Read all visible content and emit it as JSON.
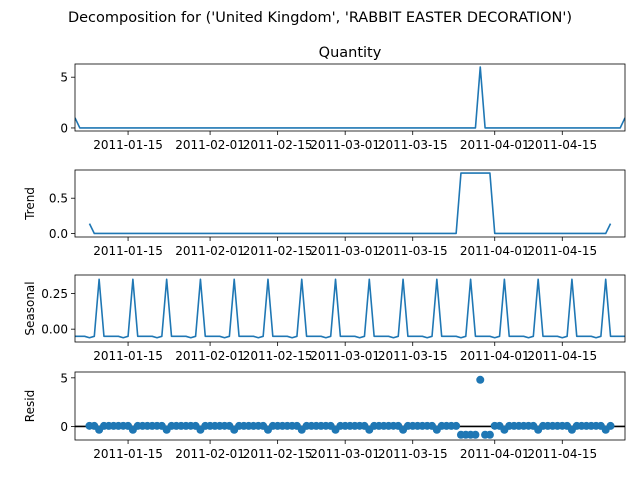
{
  "figure": {
    "suptitle": "Decomposition for ('United Kingdom', 'RABBIT EASTER DECORATION')"
  },
  "chart_data": [
    {
      "type": "line",
      "title": "Quantity",
      "ylabel": "",
      "xlim": [
        "2011-01-04",
        "2011-04-28"
      ],
      "ylim": [
        -0.3,
        6.3
      ],
      "yticks": [
        0,
        5
      ],
      "ytick_labels": [
        "0",
        "5"
      ],
      "xticks": [
        "2011-01-15",
        "2011-02-01",
        "2011-02-15",
        "2011-03-01",
        "2011-03-15",
        "2011-04-01",
        "2011-04-15"
      ],
      "xtick_labels": [
        "2011-01-15",
        "2011-02-01",
        "2011-02-15",
        "2011-03-01",
        "2011-03-15",
        "2011-04-01",
        "2011-04-15"
      ],
      "color": "#1f77b4",
      "points": [
        {
          "x": "2011-01-04",
          "y": 1
        },
        {
          "x": "2011-01-05",
          "y": 0
        },
        {
          "x": "2011-03-28",
          "y": 0
        },
        {
          "x": "2011-03-29",
          "y": 6
        },
        {
          "x": "2011-03-30",
          "y": 0
        },
        {
          "x": "2011-04-27",
          "y": 0
        },
        {
          "x": "2011-04-28",
          "y": 1
        }
      ]
    },
    {
      "type": "line",
      "title": "",
      "ylabel": "Trend",
      "xlim": [
        "2011-01-04",
        "2011-04-28"
      ],
      "ylim": [
        -0.05,
        0.9
      ],
      "yticks": [
        0,
        0.5
      ],
      "ytick_labels": [
        "0.0",
        "0.5"
      ],
      "xticks": [
        "2011-01-15",
        "2011-02-01",
        "2011-02-15",
        "2011-03-01",
        "2011-03-15",
        "2011-04-01",
        "2011-04-15"
      ],
      "xtick_labels": [
        "2011-01-15",
        "2011-02-01",
        "2011-02-15",
        "2011-03-01",
        "2011-03-15",
        "2011-04-01",
        "2011-04-15"
      ],
      "color": "#1f77b4",
      "points": [
        {
          "x": "2011-01-07",
          "y": 0.14
        },
        {
          "x": "2011-01-08",
          "y": 0
        },
        {
          "x": "2011-03-24",
          "y": 0
        },
        {
          "x": "2011-03-25",
          "y": 0.857
        },
        {
          "x": "2011-03-31",
          "y": 0.857
        },
        {
          "x": "2011-04-01",
          "y": 0
        },
        {
          "x": "2011-04-24",
          "y": 0
        },
        {
          "x": "2011-04-25",
          "y": 0.14
        }
      ]
    },
    {
      "type": "line",
      "title": "",
      "ylabel": "Seasonal",
      "xlim": [
        "2011-01-04",
        "2011-04-28"
      ],
      "ylim": [
        -0.09,
        0.38
      ],
      "yticks": [
        0,
        0.25
      ],
      "ytick_labels": [
        "0.00",
        "0.25"
      ],
      "xticks": [
        "2011-01-15",
        "2011-02-01",
        "2011-02-15",
        "2011-03-01",
        "2011-03-15",
        "2011-04-01",
        "2011-04-15"
      ],
      "xtick_labels": [
        "2011-01-15",
        "2011-02-01",
        "2011-02-15",
        "2011-03-01",
        "2011-03-15",
        "2011-04-01",
        "2011-04-15"
      ],
      "color": "#1f77b4",
      "pattern_start": "2011-01-04",
      "pattern_end": "2011-04-28",
      "weekly_pattern": [
        -0.05,
        -0.05,
        -0.05,
        -0.06,
        -0.05,
        0.35,
        -0.05
      ]
    },
    {
      "type": "scatter",
      "title": "",
      "ylabel": "Resid",
      "xlim": [
        "2011-01-04",
        "2011-04-28"
      ],
      "ylim": [
        -1.4,
        5.6
      ],
      "yticks": [
        0,
        5
      ],
      "ytick_labels": [
        "0",
        "5"
      ],
      "xticks": [
        "2011-01-15",
        "2011-02-01",
        "2011-02-15",
        "2011-03-01",
        "2011-03-15",
        "2011-04-01",
        "2011-04-15"
      ],
      "xtick_labels": [
        "2011-01-15",
        "2011-02-01",
        "2011-02-15",
        "2011-03-01",
        "2011-03-15",
        "2011-04-01",
        "2011-04-15"
      ],
      "color": "#1f77b4",
      "baseline": 0,
      "range_start": "2011-01-07",
      "range_end": "2011-04-25",
      "weekly_pattern": [
        0.05,
        0.05,
        0.05,
        0.06,
        0.05,
        -0.35,
        0.05
      ],
      "overrides": [
        {
          "x": "2011-03-25",
          "y": -0.86
        },
        {
          "x": "2011-03-26",
          "y": -0.86
        },
        {
          "x": "2011-03-27",
          "y": -0.86
        },
        {
          "x": "2011-03-28",
          "y": -0.86
        },
        {
          "x": "2011-03-29",
          "y": 4.8
        },
        {
          "x": "2011-03-30",
          "y": -0.86
        },
        {
          "x": "2011-03-31",
          "y": -0.86
        }
      ]
    }
  ]
}
